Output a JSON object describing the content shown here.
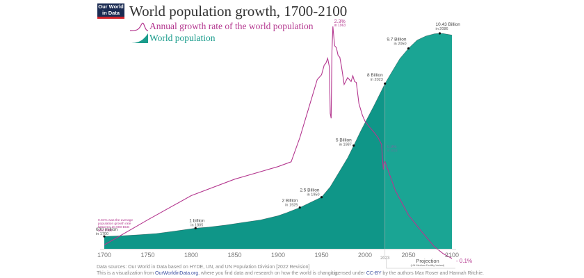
{
  "logo": {
    "line1": "Our World",
    "line2": "in Data"
  },
  "chart_data": {
    "type": "area",
    "title": "World population growth, 1700-2100",
    "legend": [
      {
        "name": "Annual growth rate of the world population",
        "color": "#b4378f",
        "type": "line"
      },
      {
        "name": "World population",
        "color": "#1a9c8c",
        "type": "area"
      }
    ],
    "xlim": [
      1700,
      2100
    ],
    "x_ticks": [
      "1700",
      "1750",
      "1800",
      "1850",
      "1900",
      "1950",
      "2000",
      "2050",
      "2100"
    ],
    "projection_start": 2023,
    "projection_tick": "2023",
    "projection_label": "Projection",
    "projection_sublabel": "(UN Medium Fertility Variant)",
    "colors": {
      "population": "#0f9688",
      "population_projection": "#1aa594",
      "growth": "#b4378f",
      "text": "#555555"
    },
    "series": [
      {
        "name": "World population",
        "unit": "billion",
        "x": [
          1700,
          1720,
          1740,
          1760,
          1780,
          1805,
          1820,
          1840,
          1860,
          1880,
          1900,
          1910,
          1925,
          1940,
          1950,
          1960,
          1970,
          1980,
          1987,
          1995,
          2000,
          2010,
          2023,
          2030,
          2040,
          2050,
          2060,
          2070,
          2080,
          2086,
          2090,
          2100
        ],
        "values": [
          0.6,
          0.63,
          0.68,
          0.74,
          0.85,
          1.0,
          1.05,
          1.15,
          1.28,
          1.4,
          1.6,
          1.75,
          2.0,
          2.3,
          2.5,
          3.0,
          3.7,
          4.4,
          5.0,
          5.7,
          6.1,
          6.9,
          8.0,
          8.5,
          9.2,
          9.7,
          10.1,
          10.3,
          10.41,
          10.43,
          10.42,
          10.35
        ]
      },
      {
        "name": "Annual growth rate of the world population",
        "unit": "percent",
        "x": [
          1700,
          1750,
          1800,
          1850,
          1900,
          1915,
          1925,
          1935,
          1945,
          1950,
          1953,
          1955,
          1957,
          1959,
          1960,
          1961,
          1962,
          1963,
          1965,
          1967,
          1969,
          1971,
          1973,
          1976,
          1980,
          1984,
          1986,
          1988,
          1990,
          1993,
          1997,
          2000,
          2005,
          2010,
          2015,
          2019,
          2020,
          2021,
          2022,
          2023,
          2025,
          2035,
          2050,
          2065,
          2080,
          2090,
          2100
        ],
        "values": [
          0.04,
          0.3,
          0.55,
          0.72,
          0.85,
          0.9,
          1.15,
          1.45,
          1.75,
          1.8,
          1.9,
          1.92,
          1.97,
          1.88,
          1.4,
          1.35,
          2.05,
          2.3,
          2.1,
          2.08,
          2.0,
          1.98,
          1.88,
          1.7,
          1.77,
          1.73,
          1.79,
          1.73,
          1.72,
          1.5,
          1.38,
          1.32,
          1.26,
          1.21,
          1.15,
          1.08,
          0.95,
          0.82,
          0.9,
          0.9,
          0.85,
          0.6,
          0.35,
          0.18,
          0.02,
          -0.05,
          -0.1
        ]
      }
    ],
    "annotations": {
      "population": [
        {
          "x": 1700,
          "value": 0.6,
          "label": "600 million",
          "sub": "in 1700"
        },
        {
          "x": 1805,
          "value": 1.0,
          "label": "1 billion",
          "sub": "in 1805"
        },
        {
          "x": 1925,
          "value": 2.0,
          "label": "2 Billion",
          "sub": "in 1925"
        },
        {
          "x": 1950,
          "value": 2.5,
          "label": "2.5 Billion",
          "sub": "in 1950"
        },
        {
          "x": 1987,
          "value": 5.0,
          "label": "5 Billion",
          "sub": "in 1987"
        },
        {
          "x": 2023,
          "value": 8.0,
          "label": "8 Billion",
          "sub": "in 2023"
        },
        {
          "x": 2050,
          "value": 9.7,
          "label": "9.7 Billion",
          "sub": "in 2050"
        },
        {
          "x": 2086,
          "value": 10.43,
          "label": "10.43 Billion",
          "sub": "in 2086"
        }
      ],
      "growth": [
        {
          "x": 1963,
          "value": 2.3,
          "label": "2.3%",
          "sub": "in 1963"
        },
        {
          "x": 2023,
          "value": 0.9,
          "label": "0.9%",
          "sub": "in 2023"
        },
        {
          "x": 2100,
          "value": -0.1,
          "label": "- 0.1%"
        }
      ],
      "note": [
        "0.04% was the average",
        "population growth rate",
        "between 10,000 BCE",
        "and 1700"
      ]
    }
  },
  "footer": {
    "sources": "Data sources: Our World in Data based on HYDE, UN, and UN Population Division [2022 Revision]",
    "viz_prefix": "This is a visualization from ",
    "viz_link": "OurWorldinData.org",
    "viz_suffix": ", where you find data and research on how the world is changing.",
    "license_prefix": "Licensed under ",
    "license_link": "CC-BY",
    "license_suffix": " by the authors Max Roser and Hannah Ritchie."
  }
}
